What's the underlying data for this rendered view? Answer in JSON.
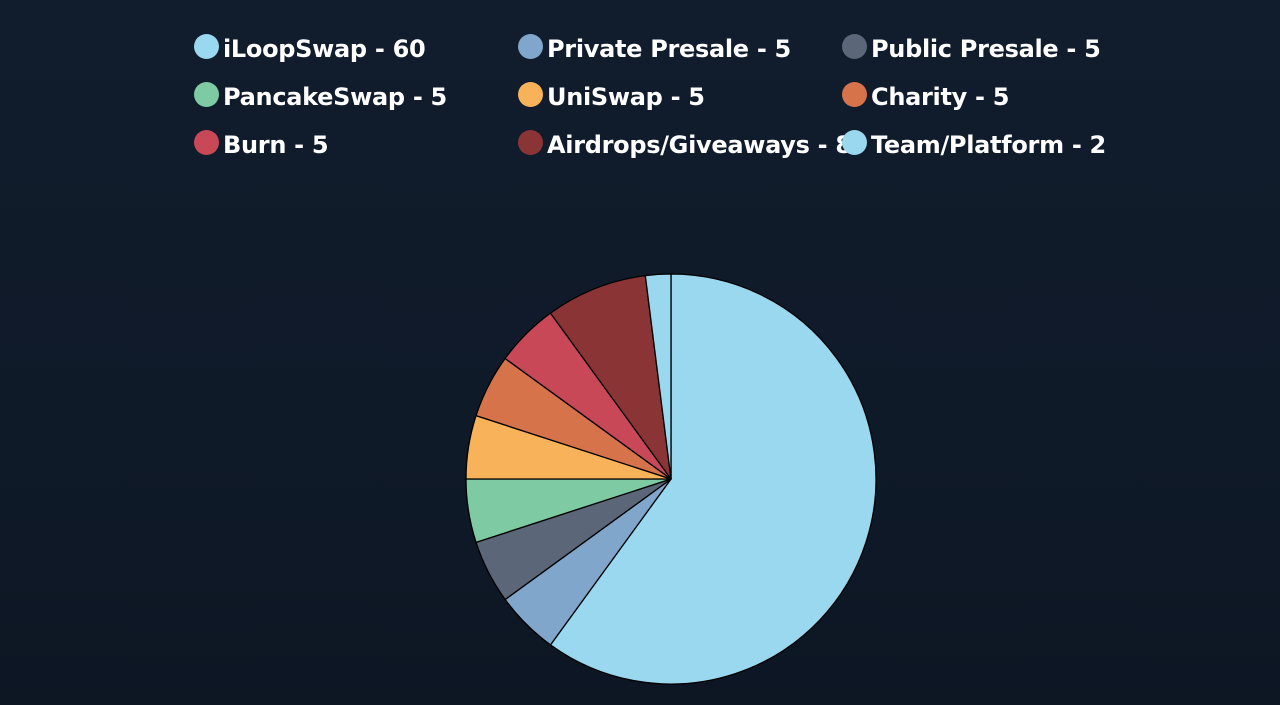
{
  "chart_data": {
    "type": "pie",
    "title": "",
    "legend_position": "top",
    "slices": [
      {
        "label": "iLoopSwap - 60",
        "value": 60,
        "color": "#9ad8ef"
      },
      {
        "label": "Private Presale - 5",
        "value": 5,
        "color": "#81a6cb"
      },
      {
        "label": "Public Presale - 5",
        "value": 5,
        "color": "#5b6679"
      },
      {
        "label": "PancakeSwap - 5",
        "value": 5,
        "color": "#7ecaa3"
      },
      {
        "label": "UniSwap - 5",
        "value": 5,
        "color": "#f8b25a"
      },
      {
        "label": "Charity - 5",
        "value": 5,
        "color": "#d7734a"
      },
      {
        "label": "Burn - 5",
        "value": 5,
        "color": "#c84858"
      },
      {
        "label": "Airdrops/Giveaways - 8",
        "value": 8,
        "color": "#8a3436"
      },
      {
        "label": "Team/Platform - 2",
        "value": 2,
        "color": "#9ad8ef"
      }
    ]
  }
}
